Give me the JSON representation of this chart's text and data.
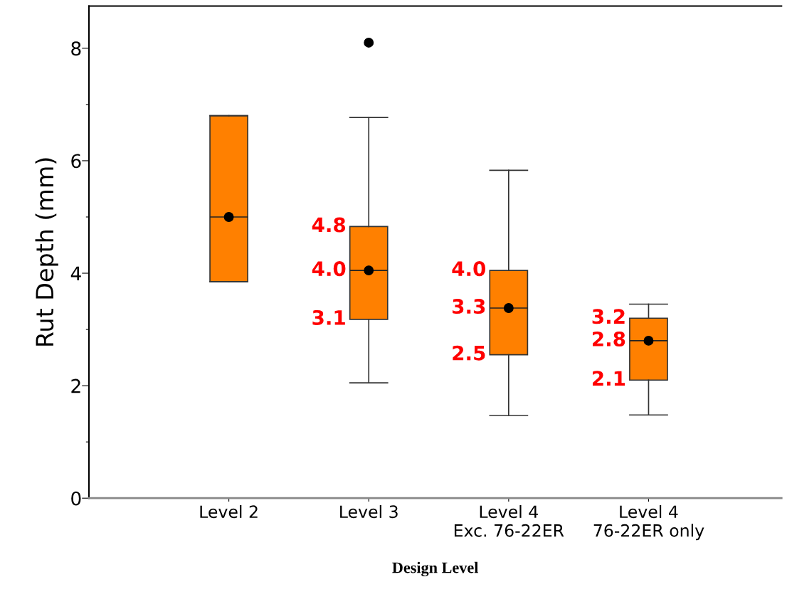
{
  "chart_data": {
    "type": "box",
    "xlabel": "Design Level",
    "ylabel": "Rut Depth (mm)",
    "categories": [
      "Level 2",
      "Level 3",
      "Level 4\nExc. 76-22ER",
      "Level 4\n76-22ER only"
    ],
    "boxes": [
      {
        "low": 3.85,
        "q1": 3.85,
        "median": 5.0,
        "q3": 6.8,
        "high": 6.8,
        "mean": 5.0
      },
      {
        "low": 2.05,
        "q1": 3.18,
        "median": 4.05,
        "q3": 4.83,
        "high": 6.77,
        "mean": 4.05,
        "outliers": [
          8.1
        ]
      },
      {
        "low": 1.47,
        "q1": 2.55,
        "median": 3.38,
        "q3": 4.05,
        "high": 5.83,
        "mean": 3.38
      },
      {
        "low": 1.48,
        "q1": 2.1,
        "median": 2.8,
        "q3": 3.2,
        "high": 3.45,
        "mean": 2.8
      }
    ],
    "color": "#ff8000",
    "ylim": [
      0,
      8.75
    ],
    "yticks": [
      0,
      {
        "value": 1,
        "label": null
      },
      2,
      {
        "value": 3,
        "label": null
      },
      4,
      {
        "value": 5,
        "label": null
      },
      6,
      {
        "value": 7,
        "label": null
      },
      8
    ],
    "grid": false,
    "annotations": [
      {
        "text": "4.8",
        "x": "Level 3",
        "y": 4.83
      },
      {
        "text": "4.0",
        "x": "Level 3",
        "y": 4.05
      },
      {
        "text": "3.1",
        "x": "Level 3",
        "y": 3.18
      },
      {
        "text": "4.0",
        "x": "Level 4\nExc. 76-22ER",
        "y": 4.05
      },
      {
        "text": "3.3",
        "x": "Level 4\nExc. 76-22ER",
        "y": 3.38
      },
      {
        "text": "2.5",
        "x": "Level 4\nExc. 76-22ER",
        "y": 2.55
      },
      {
        "text": "3.2",
        "x": "Level 4\n76-22ER only",
        "y": 3.2
      },
      {
        "text": "2.8",
        "x": "Level 4\n76-22ER only",
        "y": 2.8
      },
      {
        "text": "2.1",
        "x": "Level 4\n76-22ER only",
        "y": 2.1
      }
    ]
  }
}
